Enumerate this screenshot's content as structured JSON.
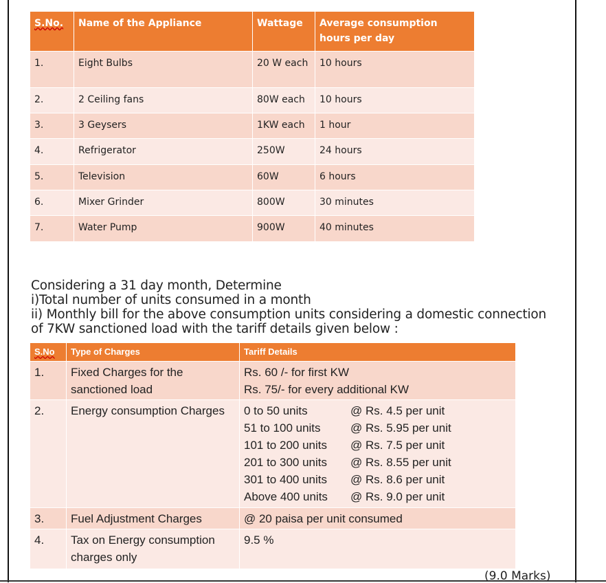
{
  "appliance_table": {
    "headers": [
      "S.No.",
      "Name of the Appliance",
      "Wattage",
      "Average consumption hours per day"
    ],
    "rows": [
      [
        "1.",
        "Eight  Bulbs",
        "20 W each",
        "10 hours"
      ],
      [
        "2.",
        " 2 Ceiling fans",
        "80W each",
        "10 hours"
      ],
      [
        "3.",
        "3 Geysers",
        "1KW each",
        "1 hour"
      ],
      [
        "4.",
        "Refrigerator",
        "250W",
        "24 hours"
      ],
      [
        "5.",
        "Television",
        "60W",
        "6 hours"
      ],
      [
        "6.",
        "Mixer Grinder",
        "800W",
        "30 minutes"
      ],
      [
        "7.",
        "Water Pump",
        "900W",
        "40 minutes"
      ]
    ]
  },
  "question": {
    "line1": "Considering a 31 day month, Determine",
    "line2": "i)Total number of units consumed in a month",
    "line3": "ii) Monthly bill for the above consumption units considering a domestic connection",
    "line4": "of 7KW sanctioned load with the tariff details given below :"
  },
  "tariff_table": {
    "headers": [
      "S.No",
      "Type of Charges",
      "Tariff Details"
    ],
    "rows": [
      {
        "sno": "1.",
        "type": "Fixed Charges for the sanctioned load",
        "details": [
          "Rs. 60 /- for first KW",
          "Rs. 75/- for every additional KW"
        ]
      },
      {
        "sno": "2.",
        "type": "Energy consumption Charges",
        "slabs": [
          [
            "0 to 50 units",
            "@ Rs. 4.5 per unit"
          ],
          [
            "51 to 100 units",
            "@ Rs. 5.95 per unit"
          ],
          [
            "101 to 200 units",
            "@ Rs. 7.5 per unit"
          ],
          [
            "201 to 300 units",
            "@ Rs. 8.55 per unit"
          ],
          [
            "301 to 400 units",
            "@ Rs. 8.6 per unit"
          ],
          [
            "Above 400 units",
            "@ Rs. 9.0 per unit"
          ]
        ]
      },
      {
        "sno": "3.",
        "type": "Fuel Adjustment Charges",
        "details": [
          "@ 20 paisa per unit consumed"
        ]
      },
      {
        "sno": "4.",
        "type": "Tax on Energy consumption charges only",
        "details": [
          "9.5 %"
        ]
      }
    ]
  },
  "marks": "(9.0 Marks)",
  "colors": {
    "header": "#ed7d31",
    "row_odd": "#f8d7cb",
    "row_even": "#fbe9e4"
  }
}
